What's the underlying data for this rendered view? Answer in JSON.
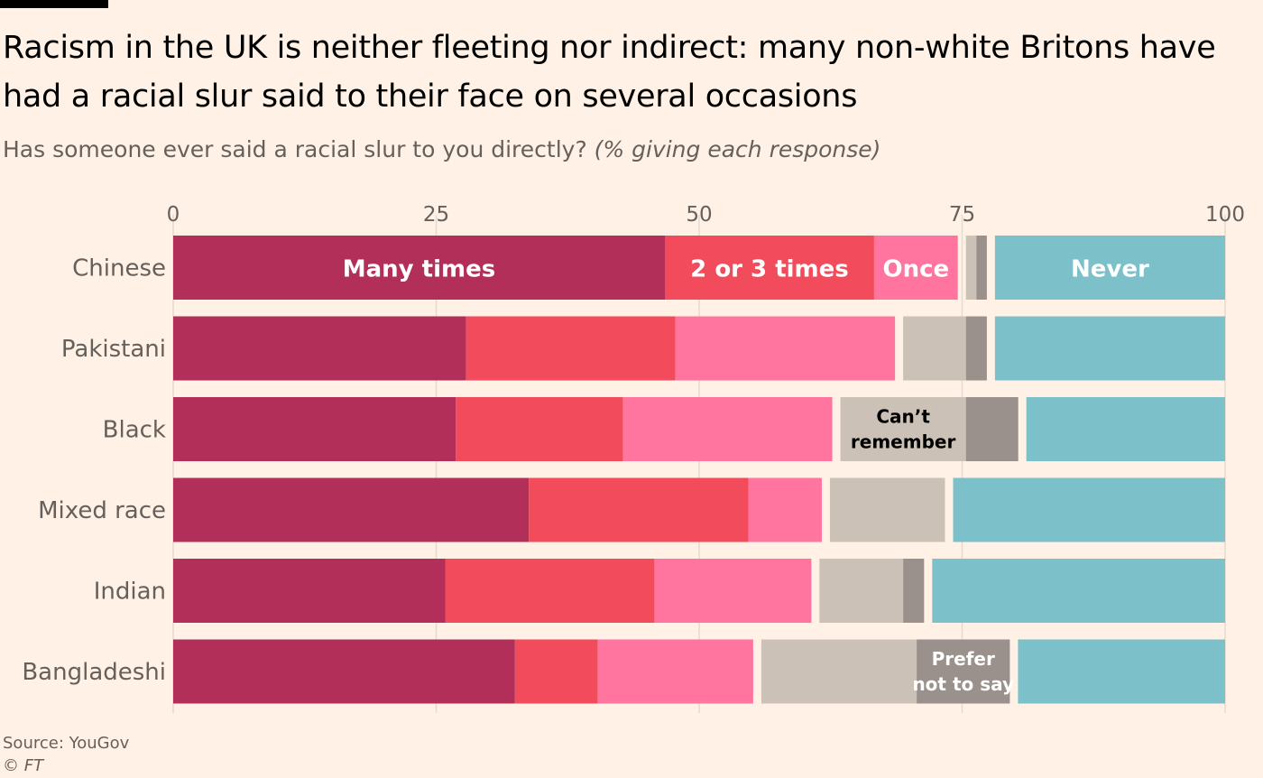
{
  "header": {
    "title": "Racism in the UK is neither fleeting nor indirect: many non-white Britons have had a racial slur said to their face on several occasions",
    "subtitle_main": "Has someone ever said a racial slur to you directly?",
    "subtitle_note": "(% giving each response)"
  },
  "footer": {
    "source": "Source: YouGov",
    "credit": "© FT"
  },
  "chart_data": {
    "type": "bar",
    "orientation": "horizontal",
    "stacked": true,
    "xlim": [
      0,
      100
    ],
    "x_ticks": [
      0,
      25,
      50,
      75,
      100
    ],
    "grid": true,
    "legend": "inline labels on bars",
    "categories": [
      "Chinese",
      "Pakistani",
      "Black",
      "Mixed race",
      "Indian",
      "Bangladeshi"
    ],
    "series": [
      {
        "name": "Many times",
        "color": "#b22f5a",
        "values": [
          47,
          28,
          27,
          34,
          26,
          33
        ],
        "label_row": 0,
        "label_color": "#ffffff"
      },
      {
        "name": "2 or 3 times",
        "color": "#f24b5b",
        "values": [
          20,
          20,
          16,
          21,
          20,
          8
        ],
        "label_row": 0,
        "label_color": "#ffffff"
      },
      {
        "name": "Once",
        "color": "#ff75a0",
        "values": [
          8,
          21,
          20,
          7,
          15,
          15
        ],
        "label_row": 0,
        "label_color": "#ffffff"
      },
      {
        "name": "Can’t remember",
        "color": "#ccc1b7",
        "values": [
          1,
          6,
          12,
          11,
          8,
          15
        ],
        "label_row": 2,
        "label_color": "#000000"
      },
      {
        "name": "Prefer not to say",
        "color": "#9a918c",
        "values": [
          1,
          2,
          5,
          0,
          2,
          9
        ],
        "label_row": 5,
        "label_color": "#ffffff"
      },
      {
        "name": "Never",
        "color": "#7cc0ca",
        "values": [
          22,
          22,
          19,
          26,
          28,
          20
        ],
        "label_row": 0,
        "label_color": "#ffffff"
      }
    ]
  }
}
